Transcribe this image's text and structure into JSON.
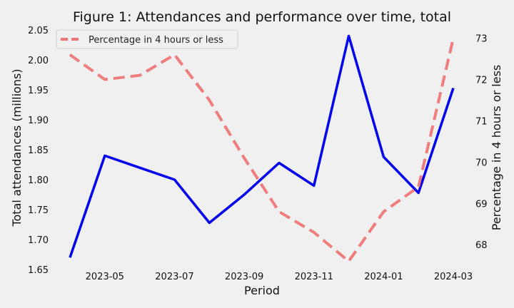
{
  "chart_data": {
    "type": "line",
    "title": "Figure 1: Attendances and performance over time, total",
    "xlabel": "Period",
    "ylabel": "Total attendances (millions)",
    "y2label": "Percentage in 4 hours or less",
    "x": [
      "2023-04",
      "2023-05",
      "2023-06",
      "2023-07",
      "2023-08",
      "2023-09",
      "2023-10",
      "2023-11",
      "2023-12",
      "2024-01",
      "2024-02",
      "2024-03"
    ],
    "x_tick_labels": [
      "2023-05",
      "2023-07",
      "2023-09",
      "2023-11",
      "2024-01",
      "2024-03"
    ],
    "ylim": [
      1.65,
      2.05
    ],
    "y_ticks": [
      "1.65",
      "1.70",
      "1.75",
      "1.80",
      "1.85",
      "1.90",
      "1.95",
      "2.00",
      "2.05"
    ],
    "y2lim": [
      67.4,
      73.2
    ],
    "y2_ticks": [
      "68",
      "69",
      "70",
      "71",
      "72",
      "73"
    ],
    "grid": false,
    "legend_position": "top-left",
    "series": [
      {
        "name": "",
        "axis": "left",
        "color": "#0000ee",
        "style": "solid",
        "values": [
          1.67,
          1.84,
          1.82,
          1.8,
          1.728,
          1.775,
          1.828,
          1.79,
          2.04,
          1.838,
          1.778,
          1.953
        ]
      },
      {
        "name": "Percentage in 4 hours or less",
        "axis": "right",
        "color": "#f07070",
        "style": "dashed",
        "values": [
          72.6,
          72.0,
          72.1,
          72.6,
          71.5,
          70.1,
          68.8,
          68.3,
          67.6,
          68.8,
          69.4,
          73.0
        ]
      }
    ]
  }
}
